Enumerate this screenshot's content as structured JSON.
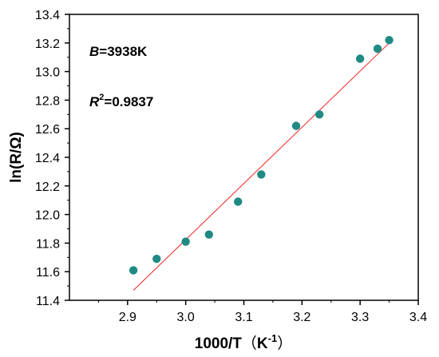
{
  "chart_data": {
    "type": "scatter",
    "xlabel": "1000/T",
    "xlabel_unit_open": "（",
    "xlabel_unit_base": "K",
    "xlabel_unit_exp": "-1",
    "xlabel_unit_close": "）",
    "ylabel": "ln(R/Ω)",
    "xlim": [
      2.8,
      3.4
    ],
    "ylim": [
      11.4,
      13.4
    ],
    "xticks": [
      "2.9",
      "3.0",
      "3.1",
      "3.2",
      "3.3",
      "3.4"
    ],
    "yticks": [
      "11.4",
      "11.6",
      "11.8",
      "12.0",
      "12.2",
      "12.4",
      "12.6",
      "12.8",
      "13.0",
      "13.2",
      "13.4"
    ],
    "grid": false,
    "series": [
      {
        "x": [
          2.91,
          2.95,
          3.0,
          3.04,
          3.09,
          3.13,
          3.19,
          3.23,
          3.3,
          3.33,
          3.35
        ],
        "y": [
          11.61,
          11.69,
          11.81,
          11.86,
          12.09,
          12.28,
          12.62,
          12.7,
          13.09,
          13.16,
          13.22
        ],
        "color": "#1f8a83"
      }
    ],
    "fit_line": {
      "x": [
        2.91,
        3.35
      ],
      "y": [
        11.47,
        13.2
      ],
      "color": "#ee2222"
    },
    "annotations": {
      "b_symbol": "B",
      "b_value": "=3938K",
      "r_symbol": "R",
      "r_exp": "2",
      "r_value": "=0.9837"
    }
  }
}
